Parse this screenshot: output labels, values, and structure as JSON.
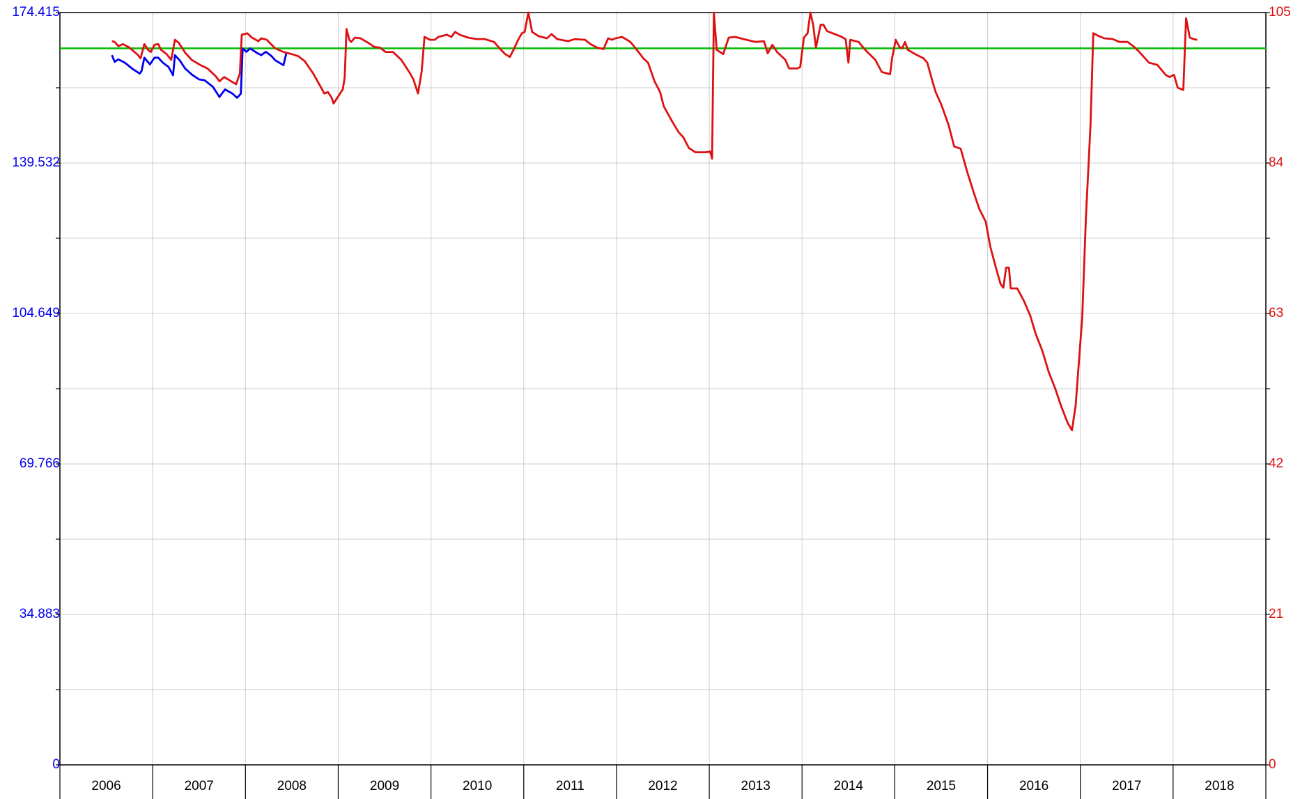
{
  "chart_data": {
    "type": "line",
    "categories": [
      "2006",
      "2007",
      "2008",
      "2009",
      "2010",
      "2011",
      "2012",
      "2013",
      "2014",
      "2015",
      "2016",
      "2017",
      "2018"
    ],
    "xlim": [
      2006,
      2019
    ],
    "xticks": [
      2006,
      2007,
      2008,
      2009,
      2010,
      2011,
      2012,
      2013,
      2014,
      2015,
      2016,
      2017,
      2018,
      2019
    ],
    "ylim": [
      0,
      174.415
    ],
    "yticks": [
      0,
      34.883,
      69.766,
      104.649,
      139.532,
      174.415
    ],
    "y2lim": [
      0,
      105
    ],
    "y2ticks": [
      0,
      21,
      42,
      63,
      84,
      105
    ],
    "grid": true,
    "reference_line": {
      "value": 100,
      "axis": "y2",
      "color": "#00bb00"
    },
    "series": [
      {
        "color": "#0000ee",
        "axis": "y",
        "x": [
          2006.56,
          2006.59,
          2006.63,
          2006.7,
          2006.79,
          2006.86,
          2006.88,
          2006.91,
          2006.97,
          2007.02,
          2007.06,
          2007.11,
          2007.17,
          2007.22,
          2007.24,
          2007.29,
          2007.35,
          2007.42,
          2007.5,
          2007.56,
          2007.65,
          2007.72,
          2007.78,
          2007.86,
          2007.91,
          2007.95,
          2007.97,
          2008.01,
          2008.05,
          2008.12,
          2008.17,
          2008.22,
          2008.28,
          2008.32,
          2008.41,
          2008.44
        ],
        "values": [
          164.53,
          162.98,
          163.56,
          162.79,
          161.24,
          160.27,
          160.85,
          163.95,
          162.4,
          163.95,
          163.95,
          162.79,
          161.82,
          159.88,
          164.53,
          163.37,
          161.43,
          160.07,
          158.91,
          158.72,
          157.17,
          154.84,
          156.59,
          155.62,
          154.65,
          155.62,
          166.08,
          165.31,
          166.08,
          165.11,
          164.53,
          165.31,
          164.34,
          163.37,
          162.21,
          164.92
        ]
      },
      {
        "color": "#dd1111",
        "axis": "y2",
        "x": [
          2006.56,
          2006.59,
          2006.63,
          2006.68,
          2006.75,
          2006.84,
          2006.87,
          2006.91,
          2006.95,
          2006.98,
          2007.02,
          2007.06,
          2007.09,
          2007.15,
          2007.2,
          2007.24,
          2007.28,
          2007.35,
          2007.42,
          2007.51,
          2007.59,
          2007.68,
          2007.72,
          2007.77,
          2007.86,
          2007.9,
          2007.94,
          2007.96,
          2008.02,
          2008.07,
          2008.14,
          2008.17,
          2008.23,
          2008.32,
          2008.41,
          2008.5,
          2008.57,
          2008.64,
          2008.73,
          2008.8,
          2008.85,
          2008.89,
          2008.93,
          2008.95,
          2009.0,
          2009.05,
          2009.07,
          2009.09,
          2009.12,
          2009.14,
          2009.18,
          2009.24,
          2009.32,
          2009.39,
          2009.45,
          2009.51,
          2009.59,
          2009.68,
          2009.77,
          2009.81,
          2009.86,
          2009.9,
          2009.93,
          2009.99,
          2010.04,
          2010.08,
          2010.17,
          2010.22,
          2010.26,
          2010.31,
          2010.4,
          2010.49,
          2010.58,
          2010.68,
          2010.74,
          2010.8,
          2010.85,
          2010.89,
          2010.94,
          2010.98,
          2011.01,
          2011.05,
          2011.09,
          2011.16,
          2011.25,
          2011.3,
          2011.36,
          2011.48,
          2011.55,
          2011.66,
          2011.72,
          2011.79,
          2011.86,
          2011.91,
          2011.95,
          2011.99,
          2012.06,
          2012.15,
          2012.2,
          2012.29,
          2012.34,
          2012.41,
          2012.47,
          2012.51,
          2012.6,
          2012.67,
          2012.72,
          2012.78,
          2012.85,
          2012.96,
          2013.01,
          2013.03,
          2013.05,
          2013.08,
          2013.15,
          2013.21,
          2013.28,
          2013.37,
          2013.5,
          2013.59,
          2013.63,
          2013.68,
          2013.73,
          2013.82,
          2013.86,
          2013.95,
          2013.98,
          2014.02,
          2014.06,
          2014.09,
          2014.12,
          2014.15,
          2014.2,
          2014.23,
          2014.27,
          2014.41,
          2014.47,
          2014.5,
          2014.52,
          2014.61,
          2014.68,
          2014.79,
          2014.86,
          2014.95,
          2014.97,
          2015.01,
          2015.05,
          2015.08,
          2015.11,
          2015.14,
          2015.22,
          2015.31,
          2015.35,
          2015.4,
          2015.44,
          2015.5,
          2015.58,
          2015.64,
          2015.71,
          2015.78,
          2015.85,
          2015.91,
          2015.98,
          2016.03,
          2016.09,
          2016.14,
          2016.17,
          2016.2,
          2016.23,
          2016.25,
          2016.32,
          2016.39,
          2016.46,
          2016.52,
          2016.59,
          2016.66,
          2016.73,
          2016.79,
          2016.86,
          2016.91,
          2016.95,
          2017.02,
          2017.06,
          2017.11,
          2017.14,
          2017.2,
          2017.26,
          2017.35,
          2017.42,
          2017.51,
          2017.59,
          2017.65,
          2017.74,
          2017.83,
          2017.92,
          2017.96,
          2018.01,
          2018.05,
          2018.11,
          2018.14,
          2018.18,
          2018.22,
          2018.26
        ],
        "values": [
          101.0,
          100.9,
          100.3,
          100.6,
          100.1,
          99.1,
          98.6,
          100.6,
          99.8,
          99.5,
          100.5,
          100.6,
          99.8,
          99.2,
          98.4,
          101.2,
          100.8,
          99.4,
          98.4,
          97.7,
          97.2,
          96.1,
          95.4,
          96.0,
          95.3,
          95.0,
          96.5,
          101.9,
          102.1,
          101.5,
          101.0,
          101.4,
          101.2,
          100.0,
          99.5,
          99.2,
          98.9,
          98.2,
          96.5,
          94.9,
          93.7,
          93.9,
          93.1,
          92.3,
          93.3,
          94.3,
          96.0,
          102.7,
          101.2,
          100.9,
          101.5,
          101.4,
          100.8,
          100.2,
          100.1,
          99.5,
          99.5,
          98.4,
          96.6,
          95.7,
          93.7,
          96.8,
          101.6,
          101.2,
          101.2,
          101.6,
          101.9,
          101.6,
          102.3,
          101.9,
          101.5,
          101.3,
          101.3,
          100.9,
          100.0,
          99.2,
          98.8,
          99.8,
          101.2,
          102.1,
          102.3,
          105.0,
          102.3,
          101.7,
          101.4,
          102.0,
          101.3,
          101.0,
          101.3,
          101.2,
          100.6,
          100.1,
          99.9,
          101.4,
          101.2,
          101.4,
          101.6,
          100.9,
          100.1,
          98.6,
          98.0,
          95.4,
          93.9,
          91.9,
          89.8,
          88.3,
          87.6,
          86.1,
          85.5,
          85.5,
          85.6,
          84.6,
          105.0,
          99.8,
          99.2,
          101.5,
          101.6,
          101.3,
          100.9,
          101.0,
          99.3,
          100.5,
          99.5,
          98.4,
          97.2,
          97.2,
          97.4,
          101.5,
          102.1,
          105.0,
          103.3,
          100.1,
          103.3,
          103.3,
          102.4,
          101.7,
          101.3,
          98.0,
          101.2,
          100.9,
          99.8,
          98.4,
          96.7,
          96.4,
          98.6,
          101.2,
          100.2,
          100.0,
          100.9,
          99.8,
          99.2,
          98.6,
          98.0,
          95.7,
          93.9,
          92.2,
          89.3,
          86.3,
          86.0,
          82.8,
          79.9,
          77.6,
          75.8,
          72.3,
          69.4,
          67.1,
          66.6,
          69.4,
          69.4,
          66.5,
          66.5,
          64.8,
          62.7,
          60.1,
          57.8,
          54.8,
          52.5,
          50.2,
          47.8,
          46.7,
          50.2,
          62.4,
          76.4,
          89.3,
          102.1,
          101.7,
          101.4,
          101.3,
          100.9,
          100.9,
          100.1,
          99.3,
          98.0,
          97.7,
          96.3,
          96.0,
          96.3,
          94.5,
          94.2,
          104.2,
          101.5,
          101.3,
          101.2
        ]
      }
    ]
  }
}
